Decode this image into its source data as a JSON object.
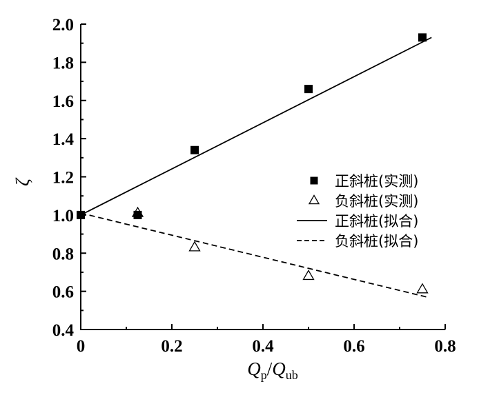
{
  "chart_data": {
    "type": "scatter",
    "title": "",
    "xlabel": "Qp/Qub",
    "xlabel_main": "Q",
    "xlabel_sub1": "p",
    "xlabel_slash": "/",
    "xlabel_main2": "Q",
    "xlabel_sub2": "ub",
    "ylabel": "ζ",
    "xlim": [
      0,
      0.8
    ],
    "ylim": [
      0.4,
      2.0
    ],
    "x_ticks": [
      "0",
      "0.2",
      "0.4",
      "0.6",
      "0.8"
    ],
    "y_ticks": [
      "0.4",
      "0.6",
      "0.8",
      "1.0",
      "1.2",
      "1.4",
      "1.6",
      "1.8",
      "2.0"
    ],
    "grid": false,
    "legend_position": "right",
    "series": [
      {
        "name": "正斜桩(实测)",
        "kind": "scatter",
        "marker": "filled-square",
        "x": [
          0,
          0.125,
          0.25,
          0.5,
          0.75
        ],
        "y": [
          1.0,
          1.0,
          1.34,
          1.66,
          1.93
        ]
      },
      {
        "name": "负斜桩(实测)",
        "kind": "scatter",
        "marker": "open-triangle",
        "x": [
          0.125,
          0.25,
          0.5,
          0.75
        ],
        "y": [
          1.01,
          0.83,
          0.68,
          0.61
        ]
      },
      {
        "name": "正斜桩(拟合)",
        "kind": "line",
        "style": "solid",
        "x": [
          0,
          0.77
        ],
        "y": [
          1.0,
          1.93
        ]
      },
      {
        "name": "负斜桩(拟合)",
        "kind": "line",
        "style": "dashed",
        "x": [
          0,
          0.76
        ],
        "y": [
          1.01,
          0.57
        ]
      }
    ]
  }
}
